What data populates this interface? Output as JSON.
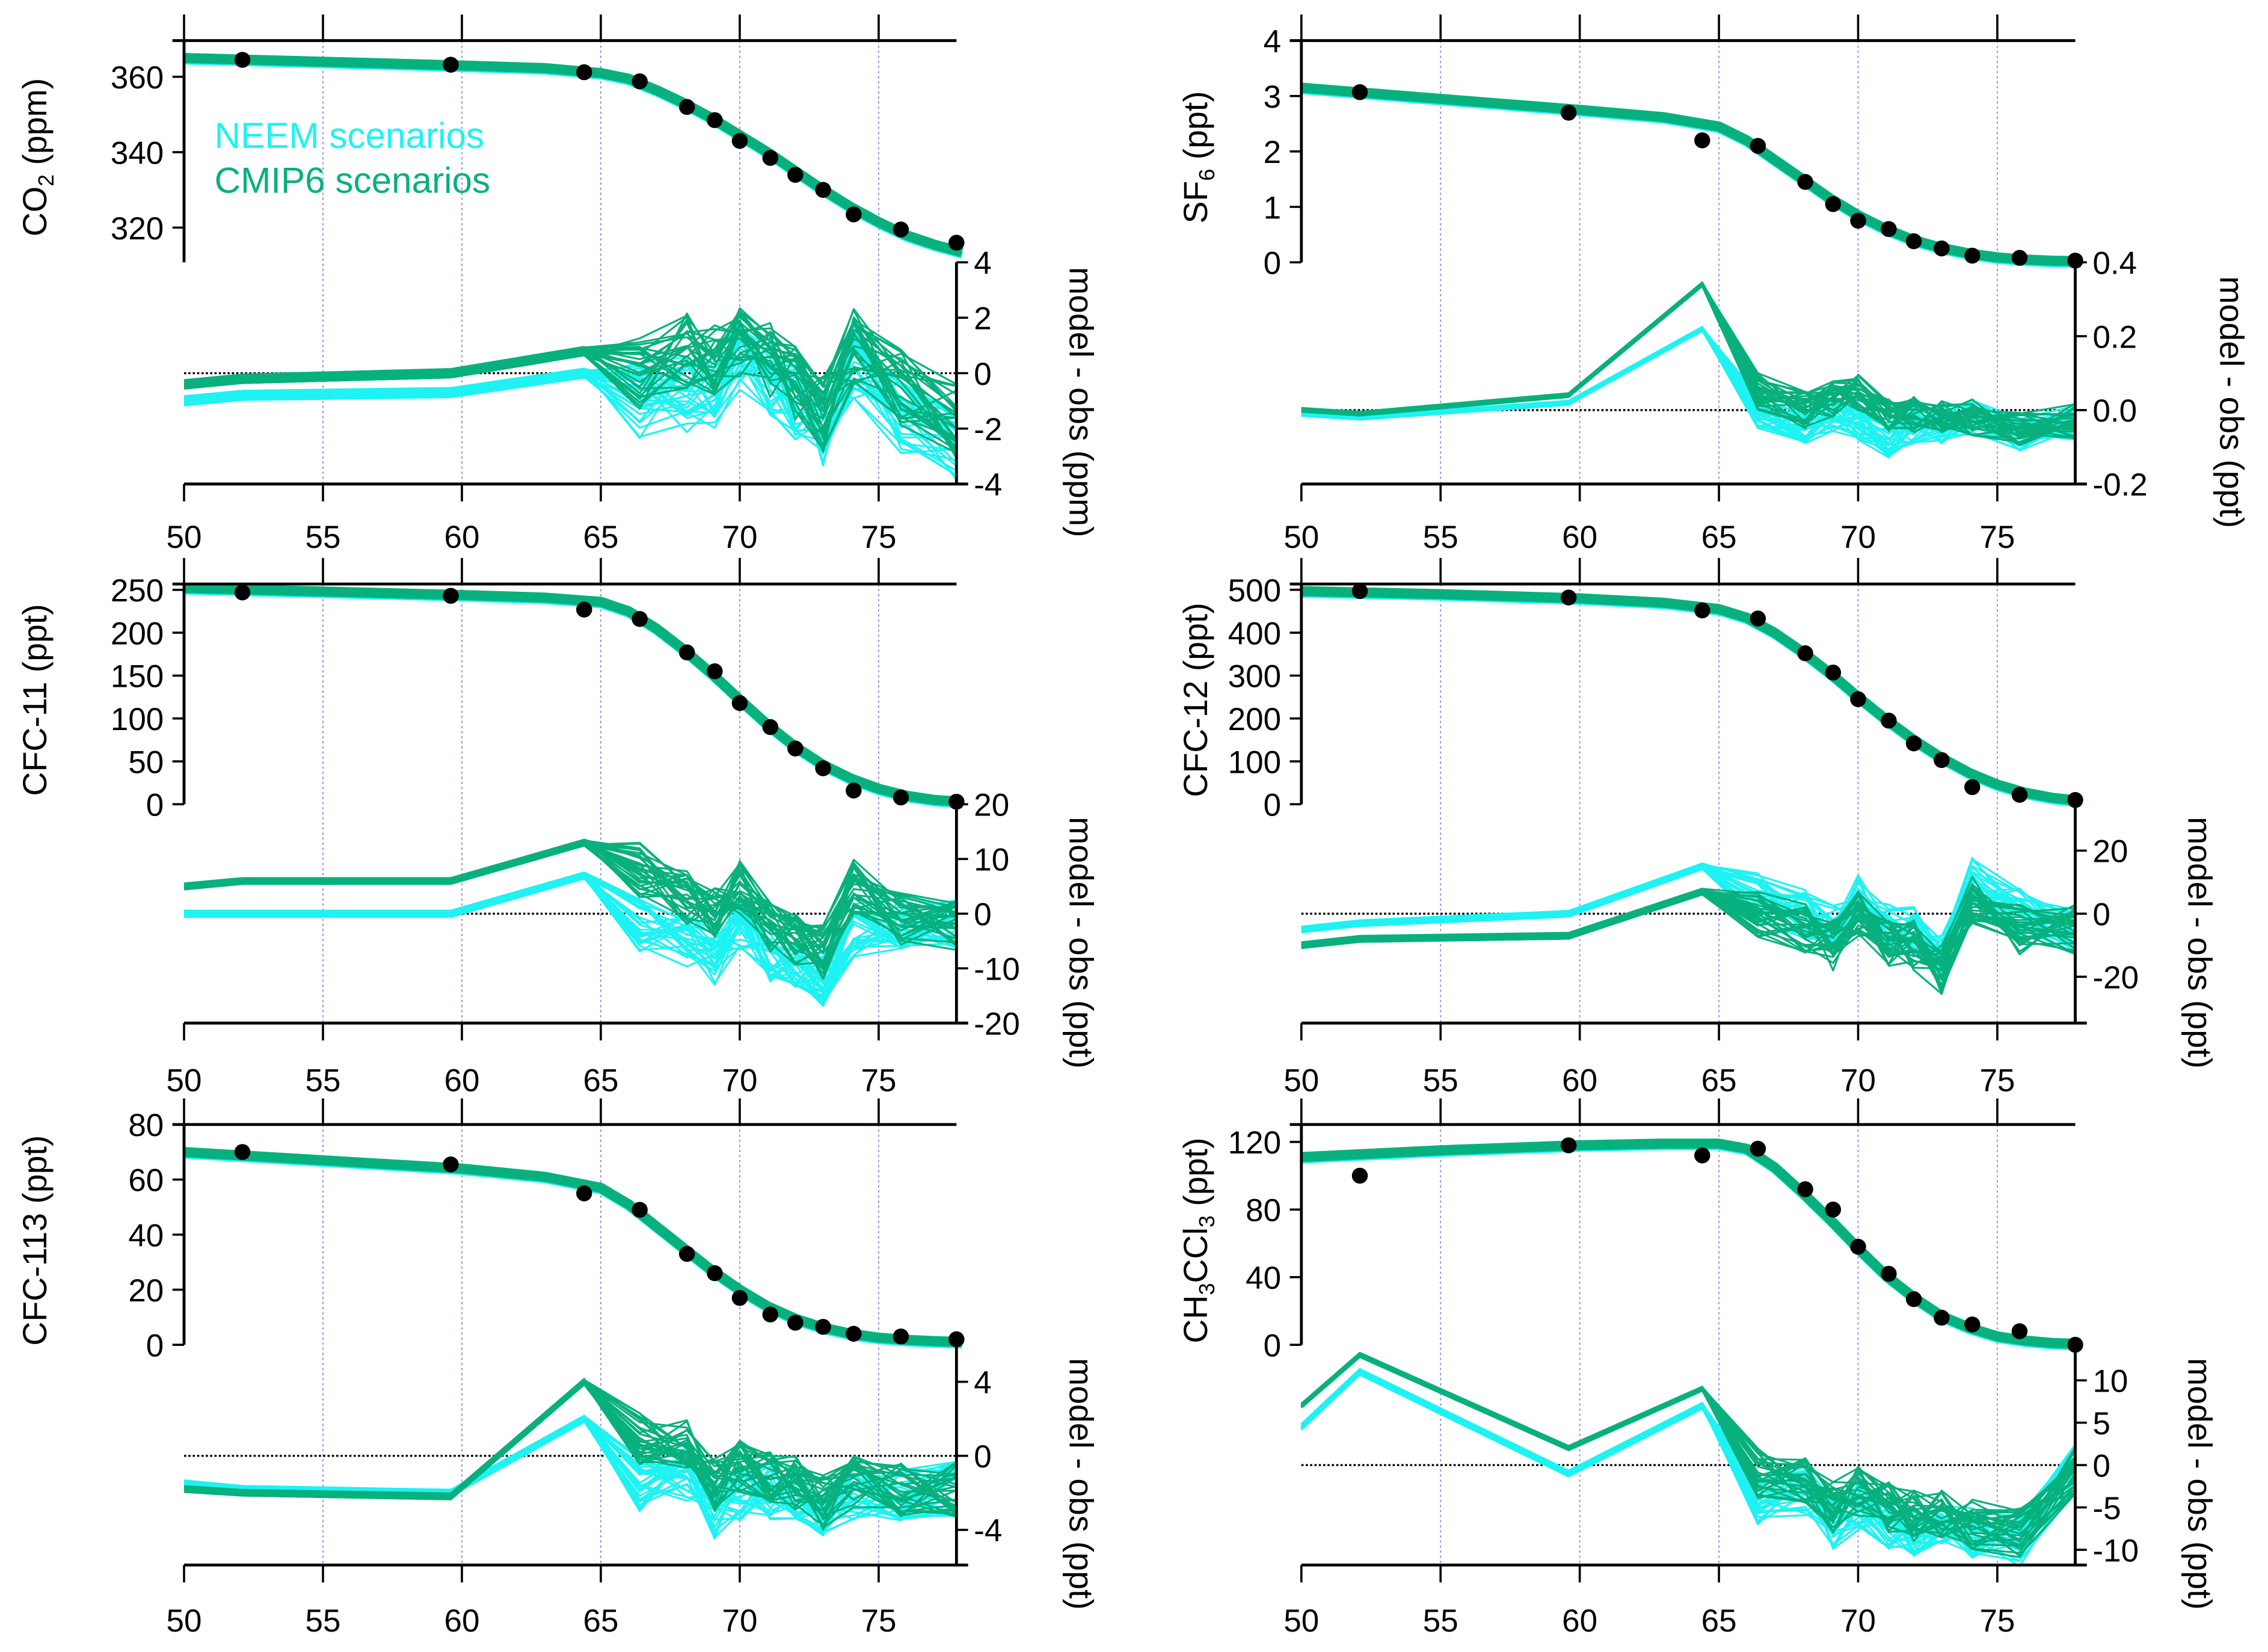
{
  "colors": {
    "neem": "#1ff2f2",
    "cmip6": "#08b07d",
    "obs": "#000000",
    "grid": "#8a8af0"
  },
  "legend": {
    "neem": "NEEM scenarios",
    "cmip6": "CMIP6 scenarios"
  },
  "chart_data": [
    {
      "type": "line",
      "title": "CO2",
      "ylabel_main": "CO",
      "ylabel_sub": "2",
      "ylabel_tail": " (ppm)",
      "resid_label": "model - obs (ppm)",
      "xlim": [
        50,
        77.8
      ],
      "xticks": [
        50,
        55,
        60,
        65,
        70,
        75
      ],
      "ylim": [
        310.8,
        369.6
      ],
      "yticks": [
        320,
        340,
        360
      ],
      "resid_ylim": [
        -4,
        4
      ],
      "resid_yticks": [
        -4,
        -2,
        0,
        2,
        4
      ],
      "obs": {
        "x": [
          52.1,
          59.6,
          64.4,
          66.4,
          68.1,
          69.1,
          70.0,
          71.1,
          72.0,
          73.0,
          74.1,
          75.8,
          77.8
        ],
        "y": [
          364.5,
          363.2,
          361.2,
          358.8,
          352,
          348.5,
          343,
          338.5,
          334,
          330,
          323.5,
          319.5,
          316
        ]
      },
      "model_curve": {
        "x": [
          50,
          55,
          60,
          63,
          65,
          66,
          67,
          68,
          69,
          70,
          71,
          72,
          73,
          74,
          75,
          76,
          77,
          78
        ],
        "y": [
          365,
          364,
          363,
          362.3,
          361,
          359.5,
          356.5,
          353,
          349,
          344.5,
          340,
          335,
          330,
          325.5,
          321.5,
          318,
          315.5,
          313.5
        ]
      },
      "resid_x": [
        50,
        52.1,
        59.6,
        64.4,
        66.4,
        68.1,
        69.1,
        70.0,
        71.1,
        72.0,
        73.0,
        74.1,
        75.8,
        77.8
      ],
      "resid_neem": [
        -1,
        -0.8,
        -0.7,
        0,
        -1,
        -0.8,
        -0.6,
        0.5,
        -0.2,
        -1,
        -2,
        0.5,
        -1.5,
        -2.5
      ],
      "resid_cmip6": [
        -0.4,
        -0.2,
        0,
        0.8,
        0,
        0.8,
        0.5,
        1.2,
        0.5,
        -0.3,
        -1.5,
        1,
        -0.5,
        -1.8
      ],
      "resid_spread": 1.4
    },
    {
      "type": "line",
      "title": "SF6",
      "ylabel_main": "SF",
      "ylabel_sub": "6",
      "ylabel_tail": " (ppt)",
      "resid_label": "model - obs (ppt)",
      "xlim": [
        50,
        77.8
      ],
      "xticks": [
        50,
        55,
        60,
        65,
        70,
        75
      ],
      "ylim": [
        0,
        4
      ],
      "yticks": [
        0,
        1,
        2,
        3,
        4
      ],
      "resid_ylim": [
        -0.2,
        0.4
      ],
      "resid_yticks": [
        -0.2,
        0.0,
        0.2,
        0.4
      ],
      "obs": {
        "x": [
          52.1,
          59.6,
          64.4,
          66.4,
          68.1,
          69.1,
          70.0,
          71.1,
          72.0,
          73.0,
          74.1,
          75.8,
          77.8
        ],
        "y": [
          3.07,
          2.7,
          2.2,
          2.1,
          1.45,
          1.05,
          0.75,
          0.6,
          0.38,
          0.25,
          0.12,
          0.08,
          0.03
        ]
      },
      "model_curve": {
        "x": [
          50,
          55,
          60,
          63,
          65,
          66,
          67,
          68,
          69,
          70,
          71,
          72,
          73,
          74,
          75,
          76,
          77,
          78
        ],
        "y": [
          3.15,
          2.95,
          2.75,
          2.62,
          2.45,
          2.2,
          1.85,
          1.5,
          1.15,
          0.85,
          0.6,
          0.4,
          0.26,
          0.16,
          0.09,
          0.05,
          0.03,
          0.02
        ]
      },
      "resid_x": [
        50,
        52.1,
        59.6,
        64.4,
        66.4,
        68.1,
        69.1,
        70.0,
        71.1,
        72.0,
        73.0,
        74.1,
        75.8,
        77.8
      ],
      "resid_neem": [
        -0.01,
        -0.02,
        0.02,
        0.22,
        0.0,
        -0.04,
        -0.01,
        -0.04,
        -0.08,
        -0.04,
        -0.04,
        -0.02,
        -0.06,
        -0.03
      ],
      "resid_cmip6": [
        0,
        -0.01,
        0.04,
        0.34,
        0.05,
        0.0,
        0.03,
        0.05,
        -0.02,
        -0.01,
        -0.01,
        -0.02,
        -0.05,
        -0.03
      ],
      "resid_spread": 0.05
    },
    {
      "type": "line",
      "title": "CFC-11",
      "ylabel_main": "CFC-11",
      "ylabel_sub": "",
      "ylabel_tail": " (ppt)",
      "resid_label": "model - obs (ppt)",
      "xlim": [
        50,
        77.8
      ],
      "xticks": [
        50,
        55,
        60,
        65,
        70,
        75
      ],
      "ylim": [
        0,
        256.8
      ],
      "yticks": [
        0,
        50,
        100,
        150,
        200,
        250
      ],
      "resid_ylim": [
        -20,
        20
      ],
      "resid_yticks": [
        -20,
        -10,
        0,
        10,
        20
      ],
      "obs": {
        "x": [
          52.1,
          59.6,
          64.4,
          66.4,
          68.1,
          69.1,
          70.0,
          71.1,
          72.0,
          73.0,
          74.1,
          75.8,
          77.8
        ],
        "y": [
          247,
          243,
          227,
          216,
          177,
          155,
          118,
          90,
          65,
          42,
          16,
          8,
          3
        ]
      },
      "model_curve": {
        "x": [
          50,
          55,
          60,
          63,
          65,
          66,
          67,
          68,
          69,
          70,
          71,
          72,
          73,
          74,
          75,
          76,
          77,
          78
        ],
        "y": [
          252,
          248,
          244,
          241,
          236,
          225,
          205,
          180,
          152,
          122,
          93,
          67,
          46,
          30,
          18,
          10,
          5,
          3
        ]
      },
      "resid_x": [
        50,
        52.1,
        59.6,
        64.4,
        66.4,
        68.1,
        69.1,
        70.0,
        71.1,
        72.0,
        73.0,
        74.1,
        75.8,
        77.8
      ],
      "resid_neem": [
        0,
        0,
        0,
        7,
        -2,
        -5,
        -8,
        -2,
        -8,
        -10,
        -12,
        -3,
        -2,
        -2
      ],
      "resid_cmip6": [
        5,
        6,
        6,
        13,
        8,
        3,
        0,
        5,
        -2,
        -5,
        -7,
        5,
        -1,
        -2
      ],
      "resid_spread": 5
    },
    {
      "type": "line",
      "title": "CFC-12",
      "ylabel_main": "CFC-12",
      "ylabel_sub": "",
      "ylabel_tail": " (ppt)",
      "resid_label": "model - obs (ppt)",
      "xlim": [
        50,
        77.8
      ],
      "xticks": [
        50,
        55,
        60,
        65,
        70,
        75
      ],
      "ylim": [
        0,
        513.5
      ],
      "yticks": [
        0,
        100,
        200,
        300,
        400,
        500
      ],
      "resid_ylim": [
        -34.7,
        34.7
      ],
      "resid_yticks": [
        -20,
        0,
        20
      ],
      "obs": {
        "x": [
          52.1,
          59.6,
          64.4,
          66.4,
          68.1,
          69.1,
          70.0,
          71.1,
          72.0,
          73.0,
          74.1,
          75.8,
          77.8
        ],
        "y": [
          497,
          482,
          452,
          433,
          352,
          307,
          245,
          195,
          142,
          103,
          40,
          22,
          10
        ]
      },
      "model_curve": {
        "x": [
          50,
          55,
          60,
          63,
          65,
          66,
          67,
          68,
          69,
          70,
          71,
          72,
          73,
          74,
          75,
          76,
          77,
          78
        ],
        "y": [
          497,
          490,
          480,
          470,
          455,
          435,
          400,
          355,
          305,
          250,
          198,
          150,
          108,
          73,
          46,
          27,
          15,
          8
        ]
      },
      "resid_x": [
        50,
        52.1,
        59.6,
        64.4,
        66.4,
        68.1,
        69.1,
        70.0,
        71.1,
        72.0,
        73.0,
        74.1,
        75.8,
        77.8
      ],
      "resid_neem": [
        -5,
        -3,
        0,
        15,
        5,
        0,
        -5,
        5,
        -5,
        -5,
        -15,
        10,
        0,
        -5
      ],
      "resid_cmip6": [
        -10,
        -8,
        -7,
        7,
        0,
        -5,
        -10,
        0,
        -10,
        -10,
        -18,
        5,
        -5,
        -5
      ],
      "resid_spread": 8
    },
    {
      "type": "line",
      "title": "CFC-113",
      "ylabel_main": "CFC-113",
      "ylabel_sub": "",
      "ylabel_tail": " (ppt)",
      "resid_label": "model - obs (ppt)",
      "xlim": [
        50,
        77.8
      ],
      "xticks": [
        50,
        55,
        60,
        65,
        70,
        75
      ],
      "ylim": [
        0,
        80
      ],
      "yticks": [
        0,
        20,
        40,
        60,
        80
      ],
      "resid_ylim": [
        -5.9,
        6.0
      ],
      "resid_yticks": [
        -4,
        0,
        4
      ],
      "obs": {
        "x": [
          52.1,
          59.6,
          64.4,
          66.4,
          68.1,
          69.1,
          70.0,
          71.1,
          72.0,
          73.0,
          74.1,
          75.8,
          77.8
        ],
        "y": [
          70,
          65.5,
          55,
          49,
          33,
          26,
          17,
          11,
          8,
          6.5,
          4,
          3,
          2
        ]
      },
      "model_curve": {
        "x": [
          50,
          55,
          60,
          63,
          65,
          66,
          67,
          68,
          69,
          70,
          71,
          72,
          73,
          74,
          75,
          76,
          77,
          78
        ],
        "y": [
          70,
          67,
          64,
          61,
          57,
          51,
          43,
          35,
          27,
          20,
          14,
          9.5,
          6.2,
          4,
          2.6,
          1.8,
          1.3,
          1
        ]
      },
      "resid_x": [
        50,
        52.1,
        59.6,
        64.4,
        66.4,
        68.1,
        69.1,
        70.0,
        71.1,
        72.0,
        73.0,
        74.1,
        75.8,
        77.8
      ],
      "resid_neem": [
        -1.5,
        -1.8,
        -2,
        2,
        -1.5,
        -1,
        -3,
        -2,
        -2,
        -2,
        -3,
        -2,
        -2,
        -1.8
      ],
      "resid_cmip6": [
        -1.8,
        -2,
        -2.2,
        4,
        1,
        0.5,
        -1.5,
        -0.5,
        -1,
        -1.5,
        -2.5,
        -1.5,
        -1.8,
        -1.8
      ],
      "resid_spread": 1.5
    },
    {
      "type": "line",
      "title": "CH3CCl3",
      "ylabel_main": "CH",
      "ylabel_sub": "3",
      "ylabel_mid": "CCl",
      "ylabel_sub2": "3",
      "ylabel_tail": " (ppt)",
      "resid_label": "model - obs (ppt)",
      "xlim": [
        50,
        77.8
      ],
      "xticks": [
        50,
        55,
        60,
        65,
        70,
        75
      ],
      "ylim": [
        0,
        130.3
      ],
      "yticks": [
        0,
        40,
        80,
        120
      ],
      "resid_ylim": [
        -11.8,
        14.2
      ],
      "resid_yticks": [
        -10,
        -5,
        0,
        5,
        10
      ],
      "obs": {
        "x": [
          52.1,
          59.6,
          64.4,
          66.4,
          68.1,
          69.1,
          70.0,
          71.1,
          72.0,
          73.0,
          74.1,
          75.8,
          77.8
        ],
        "y": [
          100,
          118,
          112,
          116,
          92,
          80,
          58,
          42,
          27,
          16,
          12,
          8,
          0
        ]
      },
      "model_curve": {
        "x": [
          50,
          55,
          60,
          63,
          65,
          66,
          67,
          68,
          69,
          70,
          71,
          72,
          73,
          74,
          75,
          76,
          77,
          78
        ],
        "y": [
          111,
          115,
          118,
          119,
          119,
          116,
          105,
          90,
          74,
          57,
          41,
          28,
          17,
          10,
          5,
          2.5,
          1,
          0.5
        ]
      },
      "resid_x": [
        50,
        52.1,
        59.6,
        64.4,
        66.4,
        68.1,
        69.1,
        70.0,
        71.1,
        72.0,
        73.0,
        74.1,
        75.8,
        77.8
      ],
      "resid_neem": [
        4.5,
        11,
        -1,
        7,
        -4,
        -3,
        -7,
        -5,
        -7,
        -8,
        -7,
        -8,
        -9,
        -0.5
      ],
      "resid_cmip6": [
        7,
        13,
        2,
        9,
        -1,
        -2,
        -5,
        -3,
        -5,
        -6,
        -6,
        -7,
        -8,
        -0.5
      ],
      "resid_spread": 3
    }
  ]
}
